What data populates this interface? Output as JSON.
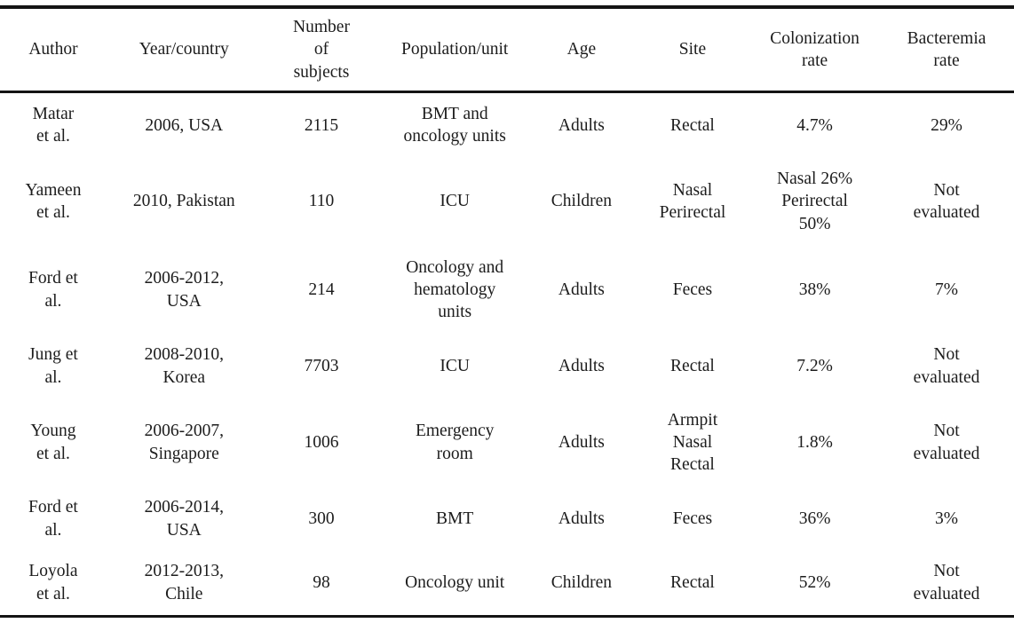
{
  "colors": {
    "background": "#ffffff",
    "text": "#1c1c1c",
    "rule": "#141414"
  },
  "table": {
    "columns": [
      "Author",
      "Year/country",
      "Number\nof\nsubjects",
      "Population/unit",
      "Age",
      "Site",
      "Colonization\nrate",
      "Bacteremia\nrate"
    ],
    "rows": [
      [
        "Matar\net al.",
        "2006, USA",
        "2115",
        "BMT and\noncology units",
        "Adults",
        "Rectal",
        "4.7%",
        "29%"
      ],
      [
        "Yameen\net al.",
        "2010, Pakistan",
        "110",
        "ICU",
        "Children",
        "Nasal\nPerirectal",
        "Nasal 26%\nPerirectal\n50%",
        "Not\nevaluated"
      ],
      [
        "Ford et\nal.",
        "2006-2012,\nUSA",
        "214",
        "Oncology and\nhematology\nunits",
        "Adults",
        "Feces",
        "38%",
        "7%"
      ],
      [
        "Jung et\nal.",
        "2008-2010,\nKorea",
        "7703",
        "ICU",
        "Adults",
        "Rectal",
        "7.2%",
        "Not\nevaluated"
      ],
      [
        "Young\net al.",
        "2006-2007,\nSingapore",
        "1006",
        "Emergency\nroom",
        "Adults",
        "Armpit\nNasal\nRectal",
        "1.8%",
        "Not\nevaluated"
      ],
      [
        "Ford et\nal.",
        "2006-2014,\nUSA",
        "300",
        "BMT",
        "Adults",
        "Feces",
        "36%",
        "3%"
      ],
      [
        "Loyola\net al.",
        "2012-2013,\nChile",
        "98",
        "Oncology unit",
        "Children",
        "Rectal",
        "52%",
        "Not\nevaluated"
      ]
    ]
  }
}
